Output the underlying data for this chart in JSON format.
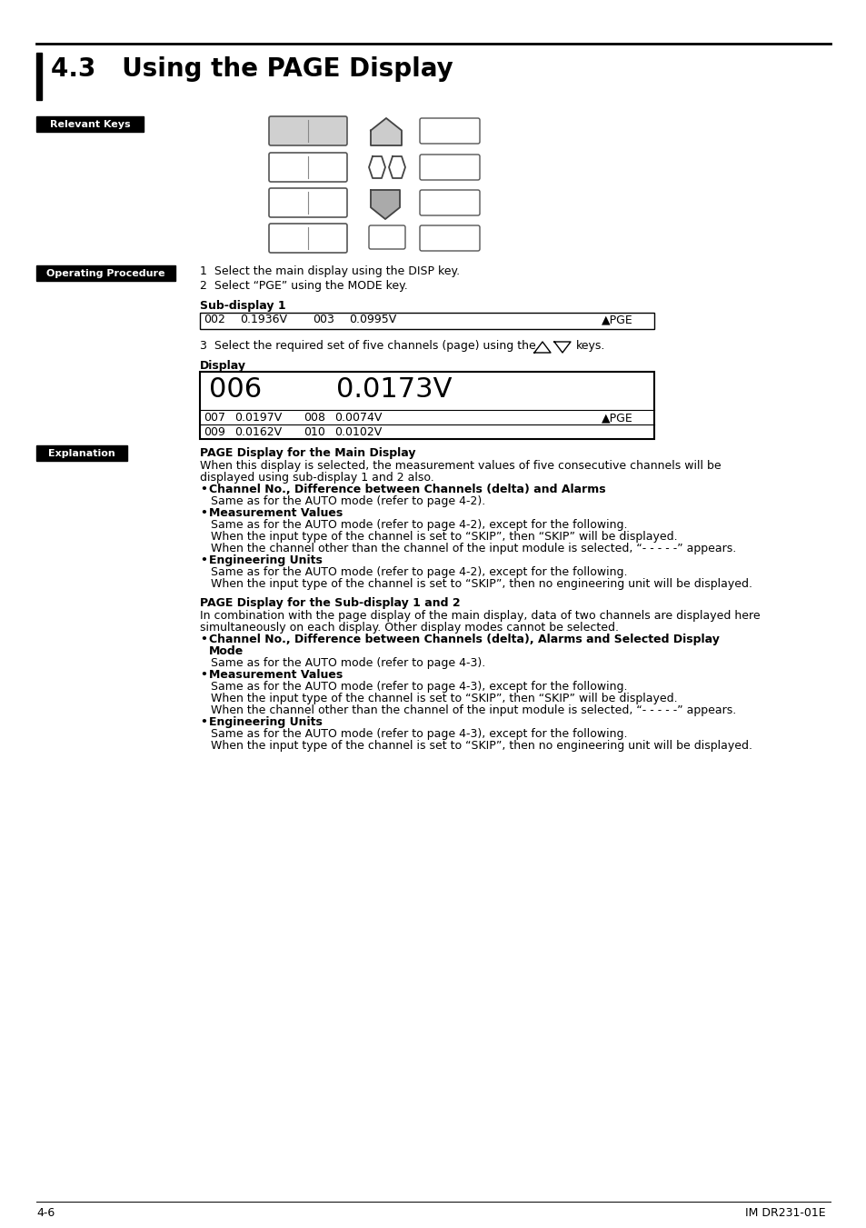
{
  "title": "4.3   Using the PAGE Display",
  "bg_color": "#ffffff",
  "page_number": "4-6",
  "doc_id": "IM DR231-01E",
  "relevant_keys_label": "Relevant Keys",
  "operating_procedure_label": "Operating Procedure",
  "explanation_label": "Explanation",
  "op_steps": [
    "1  Select the main display using the DISP key.",
    "2  Select “PGE” using the MODE key."
  ],
  "sub_display_label": "Sub-display 1",
  "display_label": "Display",
  "explanation_sections": [
    {
      "heading": "PAGE Display for the Main Display",
      "body": [
        {
          "type": "normal",
          "text": "When this display is selected, the measurement values of five consecutive channels will be"
        },
        {
          "type": "normal",
          "text": "displayed using sub-display 1 and 2 also."
        },
        {
          "type": "bullet_bold",
          "text": "Channel No., Difference between Channels (delta) and Alarms"
        },
        {
          "type": "indent",
          "text": "Same as for the AUTO mode (refer to page 4-2)."
        },
        {
          "type": "bullet_bold",
          "text": "Measurement Values"
        },
        {
          "type": "indent",
          "text": "Same as for the AUTO mode (refer to page 4-2), except for the following."
        },
        {
          "type": "indent",
          "text": "When the input type of the channel is set to “SKIP”, then “SKIP” will be displayed."
        },
        {
          "type": "indent",
          "text": "When the channel other than the channel of the input module is selected, “- - - - -” appears."
        },
        {
          "type": "bullet_bold",
          "text": "Engineering Units"
        },
        {
          "type": "indent",
          "text": "Same as for the AUTO mode (refer to page 4-2), except for the following."
        },
        {
          "type": "indent",
          "text": "When the input type of the channel is set to “SKIP”, then no engineering unit will be displayed."
        }
      ]
    },
    {
      "heading": "PAGE Display for the Sub-display 1 and 2",
      "body": [
        {
          "type": "normal",
          "text": "In combination with the page display of the main display, data of two channels are displayed here"
        },
        {
          "type": "normal",
          "text": "simultaneously on each display. Other display modes cannot be selected."
        },
        {
          "type": "bullet_bold",
          "text": "Channel No., Difference between Channels (delta), Alarms and Selected Display"
        },
        {
          "type": "bullet_bold2",
          "text": "Mode"
        },
        {
          "type": "indent",
          "text": "Same as for the AUTO mode (refer to page 4-3)."
        },
        {
          "type": "bullet_bold",
          "text": "Measurement Values"
        },
        {
          "type": "indent",
          "text": "Same as for the AUTO mode (refer to page 4-3), except for the following."
        },
        {
          "type": "indent",
          "text": "When the input type of the channel is set to “SKIP”, then “SKIP” will be displayed."
        },
        {
          "type": "indent",
          "text": "When the channel other than the channel of the input module is selected, “- - - - -” appears."
        },
        {
          "type": "bullet_bold",
          "text": "Engineering Units"
        },
        {
          "type": "indent",
          "text": "Same as for the AUTO mode (refer to page 4-3), except for the following."
        },
        {
          "type": "indent",
          "text": "When the input type of the channel is set to “SKIP”, then no engineering unit will be displayed."
        }
      ]
    }
  ]
}
